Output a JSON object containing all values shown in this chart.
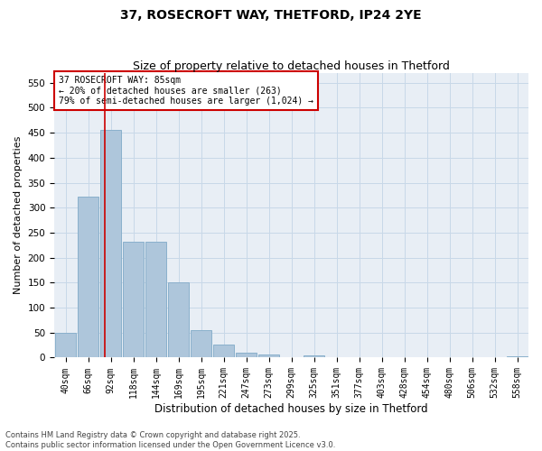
{
  "title": "37, ROSECROFT WAY, THETFORD, IP24 2YE",
  "subtitle": "Size of property relative to detached houses in Thetford",
  "xlabel": "Distribution of detached houses by size in Thetford",
  "ylabel": "Number of detached properties",
  "categories": [
    "40sqm",
    "66sqm",
    "92sqm",
    "118sqm",
    "144sqm",
    "169sqm",
    "195sqm",
    "221sqm",
    "247sqm",
    "273sqm",
    "299sqm",
    "325sqm",
    "351sqm",
    "377sqm",
    "403sqm",
    "428sqm",
    "454sqm",
    "480sqm",
    "506sqm",
    "532sqm",
    "558sqm"
  ],
  "values": [
    50,
    322,
    456,
    232,
    232,
    150,
    55,
    26,
    10,
    7,
    0,
    4,
    0,
    0,
    0,
    0,
    0,
    0,
    0,
    0,
    3
  ],
  "bar_color": "#aec6db",
  "bar_edge_color": "#8ab0cc",
  "grid_color": "#c8d8e8",
  "background_color": "#e8eef5",
  "vline_x_index": 1.73,
  "vline_color": "#cc0000",
  "annotation_text": "37 ROSECROFT WAY: 85sqm\n← 20% of detached houses are smaller (263)\n79% of semi-detached houses are larger (1,024) →",
  "annotation_box_color": "#cc0000",
  "ylim": [
    0,
    570
  ],
  "yticks": [
    0,
    50,
    100,
    150,
    200,
    250,
    300,
    350,
    400,
    450,
    500,
    550
  ],
  "footer": "Contains HM Land Registry data © Crown copyright and database right 2025.\nContains public sector information licensed under the Open Government Licence v3.0.",
  "title_fontsize": 10,
  "subtitle_fontsize": 9,
  "tick_fontsize": 7,
  "ylabel_fontsize": 8,
  "xlabel_fontsize": 8.5,
  "footer_fontsize": 6
}
